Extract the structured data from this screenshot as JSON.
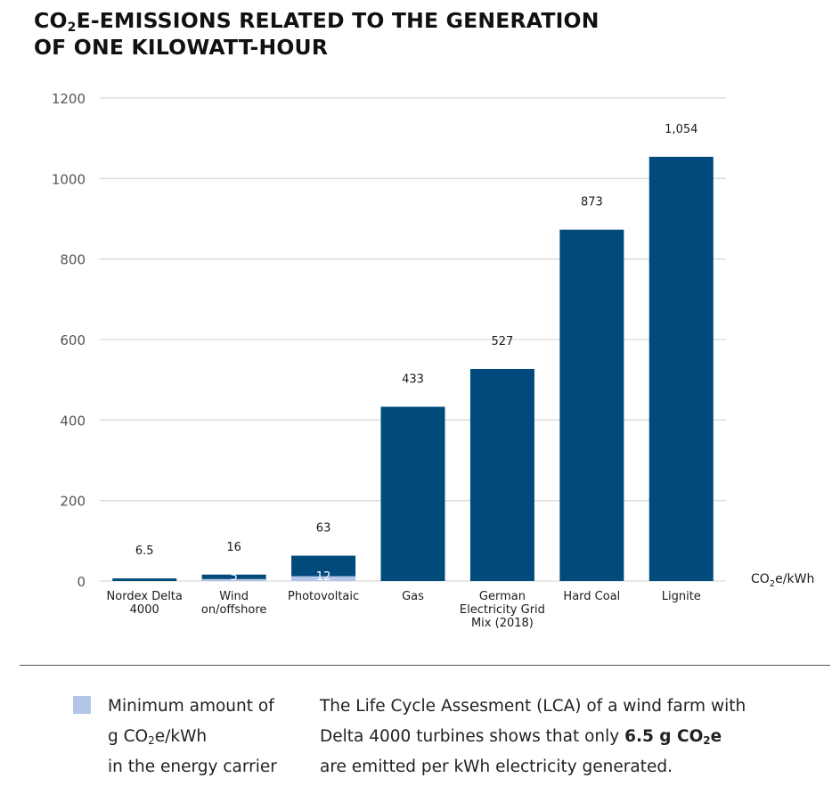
{
  "title": {
    "line1_a": "CO",
    "line1_sub": "2",
    "line1_b": "E-EMISSIONS RELATED TO THE GENERATION",
    "line2": "OF ONE KILOWATT-HOUR"
  },
  "colors": {
    "bar": "#004a7c",
    "minimum": "#b4c6e7",
    "grid": "#d9d9d9",
    "label": "#1a1a1a"
  },
  "chart_data": {
    "type": "bar",
    "categories": [
      [
        "Nordex Delta",
        "4000"
      ],
      [
        "Wind",
        "on/offshore"
      ],
      [
        "Photovoltaic"
      ],
      [
        "Gas"
      ],
      [
        "German",
        "Electricity Grid",
        "Mix (2018)"
      ],
      [
        "Hard Coal"
      ],
      [
        "Lignite"
      ]
    ],
    "series": [
      {
        "values": [
          6.5,
          16,
          63,
          433,
          527,
          873,
          1054
        ]
      },
      {
        "name": "Minimum amount of g CO2e/kWh in the energy carrier",
        "values": [
          null,
          5,
          12,
          null,
          null,
          null,
          null
        ]
      }
    ],
    "data_labels": [
      "6.5",
      "16",
      "63",
      "433",
      "527",
      "873",
      "1,054"
    ],
    "min_labels": [
      null,
      "5",
      "12",
      null,
      null,
      null,
      null
    ],
    "yticks": [
      0,
      200,
      400,
      600,
      800,
      1000,
      1200
    ],
    "ylim": [
      0,
      1200
    ],
    "unit_label_a": "CO",
    "unit_label_sub": "2",
    "unit_label_b": "e/kWh",
    "grid": true
  },
  "legend": {
    "line1": "Minimum amount of",
    "line2_a": "g CO",
    "line2_sub": "2",
    "line2_b": "e/kWh",
    "line3": "in the energy carrier"
  },
  "note": {
    "line1": "The Life Cycle Assesment (LCA) of a wind farm with",
    "line2_a": "Delta 4000 turbines shows that only ",
    "line2_bold_a": "6.5 g CO",
    "line2_bold_sub": "2",
    "line2_bold_b": "e",
    "line3": "are emitted per kWh electricity generated."
  }
}
